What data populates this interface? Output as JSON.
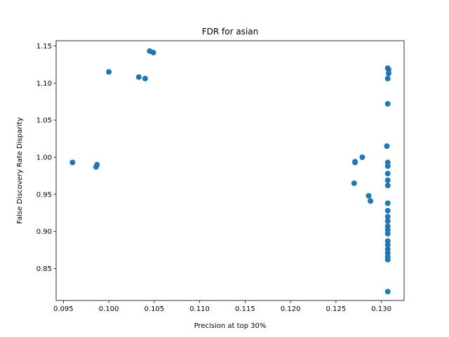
{
  "chart_data": {
    "type": "scatter",
    "title": "FDR for asian",
    "xlabel": "Precision at top 30%",
    "ylabel": "False Discovery Rate Disparity",
    "xlim": [
      0.0942,
      0.1325
    ],
    "ylim": [
      0.807,
      1.157
    ],
    "xticks": [
      0.095,
      0.1,
      0.105,
      0.11,
      0.115,
      0.12,
      0.125,
      0.13
    ],
    "xtick_labels": [
      "0.095",
      "0.100",
      "0.105",
      "0.110",
      "0.115",
      "0.120",
      "0.125",
      "0.130"
    ],
    "yticks": [
      0.85,
      0.9,
      0.95,
      1.0,
      1.05,
      1.1,
      1.15
    ],
    "ytick_labels": [
      "0.85",
      "0.90",
      "0.95",
      "1.00",
      "1.05",
      "1.10",
      "1.15"
    ],
    "grid": false,
    "marker_color": "#1f77b4",
    "points": [
      {
        "x": 0.096,
        "y": 0.993
      },
      {
        "x": 0.0986,
        "y": 0.987
      },
      {
        "x": 0.0987,
        "y": 0.99
      },
      {
        "x": 0.1,
        "y": 1.115
      },
      {
        "x": 0.1033,
        "y": 1.108
      },
      {
        "x": 0.104,
        "y": 1.106
      },
      {
        "x": 0.1045,
        "y": 1.143
      },
      {
        "x": 0.1049,
        "y": 1.141
      },
      {
        "x": 0.127,
        "y": 0.965
      },
      {
        "x": 0.1271,
        "y": 0.994
      },
      {
        "x": 0.1271,
        "y": 0.993
      },
      {
        "x": 0.1279,
        "y": 1.0
      },
      {
        "x": 0.1286,
        "y": 0.948
      },
      {
        "x": 0.1288,
        "y": 0.941
      },
      {
        "x": 0.1306,
        "y": 1.015
      },
      {
        "x": 0.1307,
        "y": 1.12
      },
      {
        "x": 0.1308,
        "y": 1.118
      },
      {
        "x": 0.1308,
        "y": 1.113
      },
      {
        "x": 0.1307,
        "y": 1.106
      },
      {
        "x": 0.1307,
        "y": 1.072
      },
      {
        "x": 0.1307,
        "y": 0.993
      },
      {
        "x": 0.1307,
        "y": 0.988
      },
      {
        "x": 0.1307,
        "y": 0.978
      },
      {
        "x": 0.1307,
        "y": 0.969
      },
      {
        "x": 0.1307,
        "y": 0.962
      },
      {
        "x": 0.1307,
        "y": 0.938
      },
      {
        "x": 0.1307,
        "y": 0.928
      },
      {
        "x": 0.1307,
        "y": 0.92
      },
      {
        "x": 0.1307,
        "y": 0.914
      },
      {
        "x": 0.1307,
        "y": 0.907
      },
      {
        "x": 0.1307,
        "y": 0.902
      },
      {
        "x": 0.1307,
        "y": 0.897
      },
      {
        "x": 0.1307,
        "y": 0.887
      },
      {
        "x": 0.1307,
        "y": 0.882
      },
      {
        "x": 0.1307,
        "y": 0.876
      },
      {
        "x": 0.1307,
        "y": 0.871
      },
      {
        "x": 0.1307,
        "y": 0.866
      },
      {
        "x": 0.1307,
        "y": 0.862
      },
      {
        "x": 0.1307,
        "y": 0.819
      }
    ]
  }
}
